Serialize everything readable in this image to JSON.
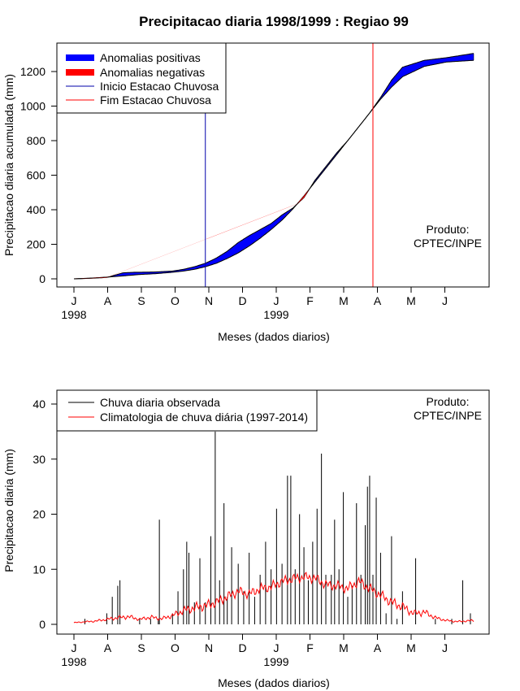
{
  "chart_data": [
    {
      "type": "area",
      "title": "Precipitacao diaria 1998/1999 : Regiao 99",
      "xlabel": "Meses (dados diarios)",
      "ylabel": "Precipitacao diaria acumulada (mm)",
      "ylim": [
        0,
        1300
      ],
      "yticks": [
        "0",
        "200",
        "400",
        "600",
        "800",
        "1000",
        "1200"
      ],
      "ytick_values": [
        0,
        200,
        400,
        600,
        800,
        1000,
        1200
      ],
      "month_labels": [
        "J",
        "A",
        "S",
        "O",
        "N",
        "D",
        "J",
        "F",
        "M",
        "A",
        "M",
        "J"
      ],
      "year_labels": [
        {
          "text": "1998",
          "month_index": 0
        },
        {
          "text": "1999",
          "month_index": 6
        }
      ],
      "days_total": 365,
      "legend": {
        "position": "top-left",
        "items": [
          {
            "label": "Anomalias positivas",
            "color": "#0000ff",
            "style": "thick"
          },
          {
            "label": "Anomalias negativas",
            "color": "#ff0000",
            "style": "thick"
          },
          {
            "label": "Inicio Estacao Chuvosa",
            "color": "#0000aa",
            "style": "thin"
          },
          {
            "label": "Fim Estacao Chuvosa",
            "color": "#ff0000",
            "style": "thin"
          }
        ]
      },
      "annotation": [
        "Produto:",
        "CPTEC/INPE"
      ],
      "rainy_season_start_day": 120,
      "rainy_season_end_day": 273,
      "observed_accumulated": {
        "days": [
          0,
          15,
          30,
          45,
          55,
          60,
          75,
          90,
          100,
          110,
          120,
          130,
          140,
          150,
          160,
          170,
          180,
          190,
          200,
          210,
          220,
          230,
          240,
          250,
          260,
          270,
          280,
          290,
          300,
          320,
          340,
          365
        ],
        "values": [
          0,
          3,
          8,
          35,
          38,
          38,
          40,
          45,
          55,
          70,
          90,
          120,
          160,
          210,
          250,
          285,
          320,
          370,
          410,
          470,
          570,
          650,
          730,
          800,
          880,
          960,
          1050,
          1150,
          1225,
          1265,
          1280,
          1305
        ]
      },
      "climatology_accumulated": {
        "days": [
          0,
          15,
          30,
          45,
          60,
          75,
          90,
          100,
          110,
          120,
          130,
          140,
          150,
          160,
          170,
          180,
          190,
          200,
          210,
          220,
          230,
          240,
          250,
          260,
          270,
          280,
          290,
          300,
          320,
          340,
          365
        ],
        "values": [
          0,
          4,
          10,
          17,
          25,
          30,
          38,
          45,
          55,
          70,
          90,
          118,
          150,
          190,
          235,
          285,
          340,
          405,
          480,
          560,
          640,
          720,
          800,
          880,
          960,
          1040,
          1110,
          1170,
          1230,
          1255,
          1265
        ]
      }
    },
    {
      "type": "line",
      "xlabel": "Meses (dados diarios)",
      "ylabel": "Precipitacao diaria (mm)",
      "ylim": [
        0,
        40
      ],
      "yticks": [
        "0",
        "10",
        "20",
        "30",
        "40"
      ],
      "ytick_values": [
        0,
        10,
        20,
        30,
        40
      ],
      "month_labels": [
        "J",
        "A",
        "S",
        "O",
        "N",
        "D",
        "J",
        "F",
        "M",
        "A",
        "M",
        "J"
      ],
      "year_labels": [
        {
          "text": "1998",
          "month_index": 0
        },
        {
          "text": "1999",
          "month_index": 6
        }
      ],
      "days_total": 365,
      "legend": {
        "position": "top-left",
        "items": [
          {
            "label": "Chuva diaria observada",
            "color": "#000000"
          },
          {
            "label": "Climatologia de chuva diária (1997-2014)",
            "color": "#ff0000"
          }
        ]
      },
      "annotation": [
        "Produto:",
        "CPTEC/INPE"
      ],
      "observed_peaks": [
        {
          "day": 10,
          "value": 1
        },
        {
          "day": 30,
          "value": 2
        },
        {
          "day": 35,
          "value": 5
        },
        {
          "day": 40,
          "value": 7
        },
        {
          "day": 42,
          "value": 8
        },
        {
          "day": 60,
          "value": 1
        },
        {
          "day": 70,
          "value": 1
        },
        {
          "day": 77,
          "value": 1
        },
        {
          "day": 78,
          "value": 19
        },
        {
          "day": 90,
          "value": 2
        },
        {
          "day": 95,
          "value": 6
        },
        {
          "day": 100,
          "value": 10
        },
        {
          "day": 103,
          "value": 15
        },
        {
          "day": 105,
          "value": 13
        },
        {
          "day": 110,
          "value": 4
        },
        {
          "day": 115,
          "value": 12
        },
        {
          "day": 120,
          "value": 4
        },
        {
          "day": 125,
          "value": 16
        },
        {
          "day": 129,
          "value": 35
        },
        {
          "day": 133,
          "value": 8
        },
        {
          "day": 137,
          "value": 22
        },
        {
          "day": 140,
          "value": 5
        },
        {
          "day": 144,
          "value": 14
        },
        {
          "day": 150,
          "value": 11
        },
        {
          "day": 155,
          "value": 6
        },
        {
          "day": 160,
          "value": 13
        },
        {
          "day": 165,
          "value": 5
        },
        {
          "day": 170,
          "value": 9
        },
        {
          "day": 175,
          "value": 15
        },
        {
          "day": 180,
          "value": 10
        },
        {
          "day": 185,
          "value": 21
        },
        {
          "day": 190,
          "value": 11
        },
        {
          "day": 195,
          "value": 27
        },
        {
          "day": 198,
          "value": 27
        },
        {
          "day": 202,
          "value": 10
        },
        {
          "day": 206,
          "value": 20
        },
        {
          "day": 210,
          "value": 14
        },
        {
          "day": 214,
          "value": 8
        },
        {
          "day": 218,
          "value": 15
        },
        {
          "day": 222,
          "value": 21
        },
        {
          "day": 226,
          "value": 31
        },
        {
          "day": 230,
          "value": 9
        },
        {
          "day": 235,
          "value": 9
        },
        {
          "day": 238,
          "value": 19
        },
        {
          "day": 242,
          "value": 10
        },
        {
          "day": 246,
          "value": 24
        },
        {
          "day": 250,
          "value": 5
        },
        {
          "day": 254,
          "value": 7
        },
        {
          "day": 258,
          "value": 22
        },
        {
          "day": 262,
          "value": 9
        },
        {
          "day": 266,
          "value": 18
        },
        {
          "day": 268,
          "value": 25
        },
        {
          "day": 270,
          "value": 27
        },
        {
          "day": 273,
          "value": 9
        },
        {
          "day": 276,
          "value": 23
        },
        {
          "day": 280,
          "value": 13
        },
        {
          "day": 285,
          "value": 2
        },
        {
          "day": 290,
          "value": 16
        },
        {
          "day": 295,
          "value": 1
        },
        {
          "day": 300,
          "value": 6
        },
        {
          "day": 312,
          "value": 12
        },
        {
          "day": 330,
          "value": 1
        },
        {
          "day": 345,
          "value": 1
        },
        {
          "day": 355,
          "value": 8
        },
        {
          "day": 362,
          "value": 2
        }
      ],
      "climatology_daily": {
        "days": [
          0,
          20,
          40,
          50,
          60,
          70,
          80,
          90,
          100,
          110,
          120,
          130,
          140,
          150,
          160,
          170,
          180,
          190,
          200,
          210,
          220,
          230,
          240,
          250,
          260,
          270,
          280,
          290,
          300,
          310,
          320,
          330,
          340,
          350,
          365
        ],
        "values": [
          0.3,
          0.6,
          1.2,
          1.4,
          0.9,
          1.3,
          1.0,
          1.6,
          2.5,
          3.0,
          3.4,
          4.0,
          5.0,
          6.0,
          5.5,
          6.5,
          6.8,
          7.8,
          8.3,
          8.6,
          8.4,
          7.2,
          7.0,
          6.5,
          7.8,
          6.5,
          5.3,
          4.0,
          3.2,
          2.0,
          2.2,
          1.2,
          0.7,
          0.5,
          0.7
        ]
      }
    }
  ]
}
